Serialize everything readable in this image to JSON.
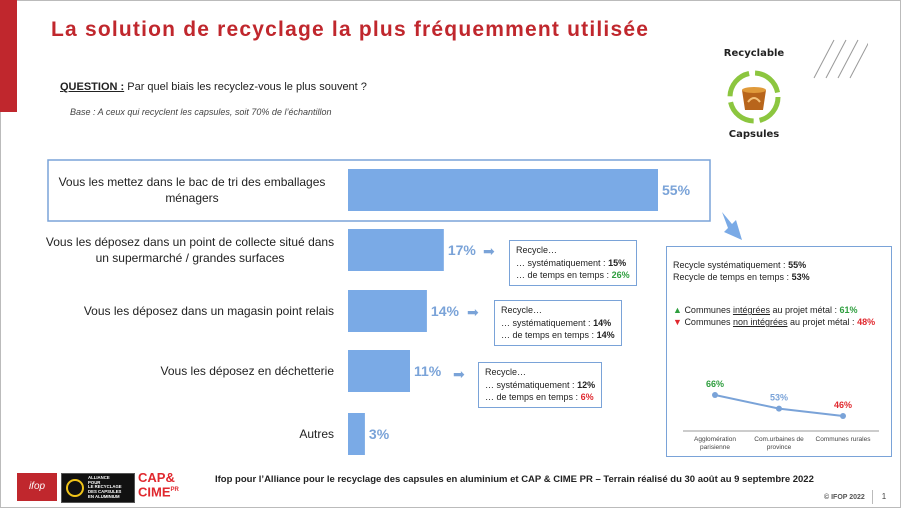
{
  "header": {
    "title": "La solution de recyclage la plus fréquemment utilisée",
    "question_label": "QUESTION :",
    "question_text": "Par quel biais les recyclez-vous le plus souvent ?",
    "base_text": "Base : A ceux qui recyclent les capsules, soit 70% de l’échantillon"
  },
  "logo": {
    "top_text": "Recyclable",
    "bottom_text": "Capsules"
  },
  "chart_data": {
    "type": "bar",
    "orientation": "horizontal",
    "categories": [
      "Vous les mettez dans le bac de tri des emballages ménagers",
      "Vous les déposez dans un point de collecte situé dans un supermarché / grandes surfaces",
      "Vous les déposez dans un magasin point relais",
      "Vous les déposez en déchetterie",
      "Autres"
    ],
    "category_lines": [
      [
        "Vous les mettez dans le bac de tri des emballages",
        "ménagers"
      ],
      [
        "Vous les déposez dans un point de collecte situé dans",
        "un supermarché / grandes surfaces"
      ],
      [
        "Vous les déposez dans un magasin point relais"
      ],
      [
        "Vous les déposez en déchetterie"
      ],
      [
        "Autres"
      ]
    ],
    "values": [
      55,
      17,
      14,
      11,
      3
    ],
    "labels": [
      "55%",
      "17%",
      "14%",
      "11%",
      "3%"
    ],
    "unit": "%",
    "highlight": "Vous les mettez dans le bac de tri des emballages ménagers"
  },
  "recycle_boxes": [
    {
      "title": "Recycle…",
      "line1_label": "… systématiquement :",
      "line1_value": "15%",
      "line2_label": "… de temps en temps :",
      "line2_value": "26%",
      "line2_color": "green"
    },
    {
      "title": "Recycle…",
      "line1_label": "… systématiquement :",
      "line1_value": "14%",
      "line2_label": "… de temps en temps :",
      "line2_value": "14%",
      "line2_color": "none"
    },
    {
      "title": "Recycle…",
      "line1_label": "… systématiquement :",
      "line1_value": "12%",
      "line2_label": "… de temps en temps :",
      "line2_value": "6%",
      "line2_color": "red"
    }
  ],
  "right_panel": {
    "line1_label": "Recycle systématiquement :",
    "line1_value": "55%",
    "line2_label": "Recycle de temps en temps :",
    "line2_value": "53%",
    "comm1_pre": "Communes ",
    "comm1_u": "intégrées",
    "comm1_post": " au projet métal :",
    "comm1_value": "61%",
    "comm2_pre": "Communes ",
    "comm2_u": "non intégrées",
    "comm2_post": " au projet métal :",
    "comm2_value": "48%",
    "up_icon": "triangle-up",
    "down_icon": "triangle-down",
    "colors": {
      "green": "#2e9e3e",
      "red": "#e0282e",
      "blue": "#7aa3d8"
    },
    "line_chart": {
      "type": "line",
      "categories": [
        [
          "Agglomération",
          "parisienne"
        ],
        [
          "Com.urbaines de",
          "province"
        ],
        [
          "Communes rurales"
        ]
      ],
      "values": [
        66,
        53,
        46
      ],
      "labels": [
        "66%",
        "53%",
        "46%"
      ],
      "label_colors": [
        "#2e9e3e",
        "#7aa3d8",
        "#e0282e"
      ]
    }
  },
  "footer": {
    "text": "Ifop pour l’Alliance pour le recyclage des capsules en aluminium et CAP & CIME PR – Terrain réalisé du 30 août au 9 septembre 2022",
    "copyright": "© IFOP 2022",
    "page": "1",
    "ifop_logo": "ifop",
    "alliance_logo_lines": [
      "ALLIANCE",
      "POUR",
      "LE RECYCLAGE",
      "DES CAPSULES",
      "EN ALUMINIUM"
    ],
    "capcime_logo": [
      "CAP&",
      "CIME"
    ],
    "capcime_suffix": "PR"
  }
}
